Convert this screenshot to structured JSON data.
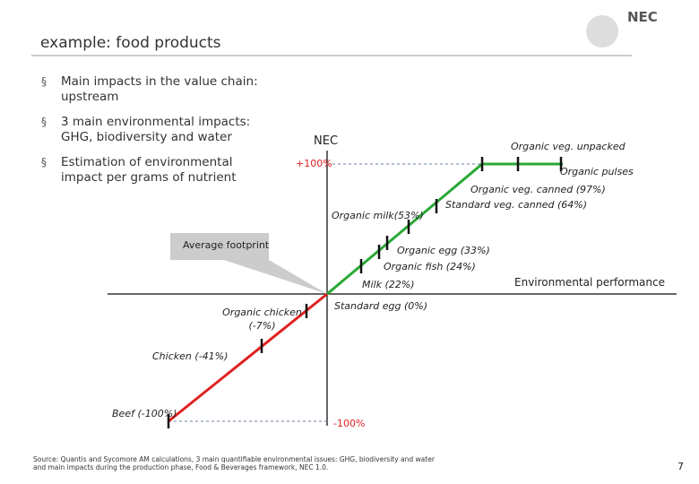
{
  "header": {
    "title": "example: food products",
    "logo": "NEC"
  },
  "bullets": [
    "Main impacts in the value chain: upstream",
    "3 main environmental impacts: GHG, biodiversity and water",
    "Estimation of environmental impact per grams of nutrient"
  ],
  "chart": {
    "y_axis_label": "NEC",
    "x_axis_label": "Environmental performance",
    "top_label": "+100%",
    "bottom_label": "-100%",
    "callout": "Average footprint",
    "labels": [
      "Organic veg. unpacked",
      "Organic pulses",
      "Organic veg. canned (97%)",
      "Standard veg. canned (64%)",
      "Organic milk(53%)",
      "Organic egg (33%)",
      "Organic fish (24%)",
      "Milk (22%)",
      "Standard egg (0%)",
      "Organic chicken (-7%)",
      "Chicken (-41%)",
      "Beef (-100%)"
    ]
  },
  "footer": {
    "source": "Source: Quantis and Sycomore AM calculations, 3 main quantifiable environmental issues: GHG, biodiversity and water and main impacts during the production phase, Food & Beverages framework, NEC 1.0.",
    "page": "7"
  }
}
